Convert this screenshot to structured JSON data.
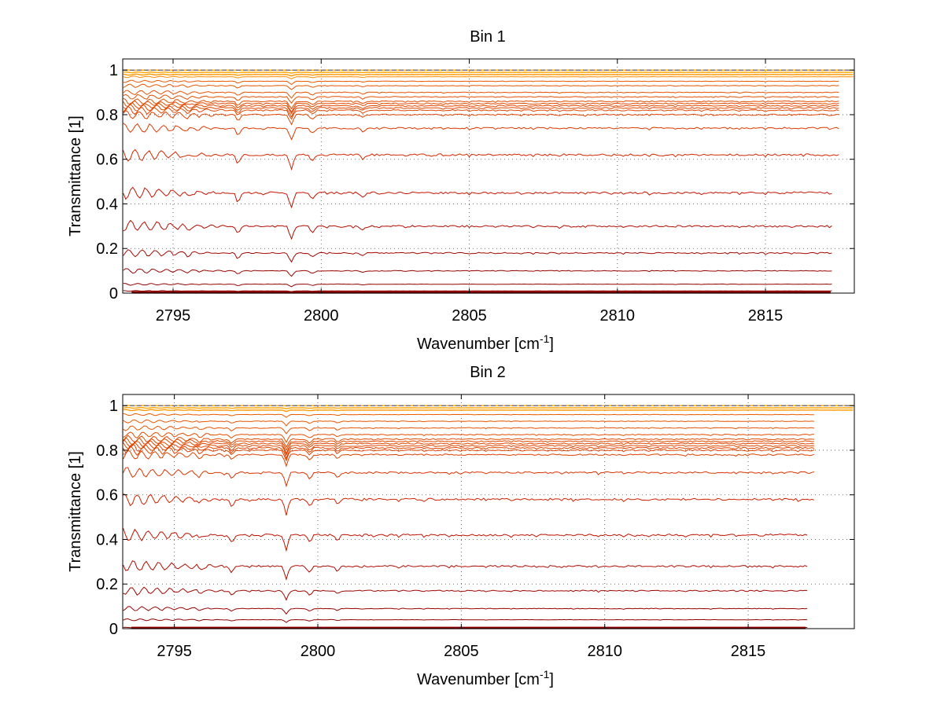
{
  "chart_data": [
    {
      "type": "line",
      "title": "Bin 1",
      "xlabel": "Wavenumber [cm",
      "xlabel_superscript": "-1",
      "xlabel_suffix": "]",
      "ylabel": "Transmittance [1]",
      "xlim": [
        2793.3,
        2818.0
      ],
      "ylim": [
        0,
        1.05
      ],
      "xticks": [
        2795,
        2800,
        2805,
        2810,
        2815
      ],
      "xtick_labels": [
        "2795",
        "2800",
        "2805",
        "2810",
        "2815"
      ],
      "yticks": [
        0,
        0.2,
        0.4,
        0.6,
        0.8,
        1
      ],
      "ytick_labels": [
        "0",
        "0.2",
        "0.4",
        "0.6",
        "0.8",
        "1"
      ],
      "grid": "dotted",
      "colors": {
        "dark": "#8b0000",
        "mid": "#cc1500",
        "light": "#ff8c00",
        "top": "#ffb000"
      },
      "absorption_lines": [
        {
          "x": 2797.2,
          "depth": 0.55
        },
        {
          "x": 2799.0,
          "depth": 1.0
        },
        {
          "x": 2799.7,
          "depth": 0.45
        },
        {
          "x": 2801.4,
          "depth": 0.3
        },
        {
          "x": 2795.5,
          "depth": 0.25
        }
      ],
      "series_levels": [
        1.0,
        0.99,
        0.98,
        0.97,
        0.95,
        0.93,
        0.9,
        0.88,
        0.86,
        0.85,
        0.84,
        0.83,
        0.82,
        0.8,
        0.74,
        0.62,
        0.45,
        0.3,
        0.18,
        0.1,
        0.04,
        0.01
      ],
      "series_x_end": 2817.5
    },
    {
      "type": "line",
      "title": "Bin 2",
      "xlabel": "Wavenumber [cm",
      "xlabel_superscript": "-1",
      "xlabel_suffix": "]",
      "ylabel": "Transmittance [1]",
      "xlim": [
        2793.2,
        2818.7
      ],
      "ylim": [
        0,
        1.05
      ],
      "xticks": [
        2795,
        2800,
        2805,
        2810,
        2815
      ],
      "xtick_labels": [
        "2795",
        "2800",
        "2805",
        "2810",
        "2815"
      ],
      "yticks": [
        0,
        0.2,
        0.4,
        0.6,
        0.8,
        1
      ],
      "ytick_labels": [
        "0",
        "0.2",
        "0.4",
        "0.6",
        "0.8",
        "1"
      ],
      "grid": "dotted",
      "colors": {
        "dark": "#8b0000",
        "mid": "#cc1500",
        "light": "#ff8c00",
        "top": "#ffb000"
      },
      "absorption_lines": [
        {
          "x": 2797.0,
          "depth": 0.5
        },
        {
          "x": 2798.9,
          "depth": 1.0
        },
        {
          "x": 2799.7,
          "depth": 0.45
        },
        {
          "x": 2800.7,
          "depth": 0.3
        },
        {
          "x": 2795.9,
          "depth": 0.25
        }
      ],
      "series_levels": [
        1.0,
        0.99,
        0.98,
        0.96,
        0.93,
        0.9,
        0.87,
        0.85,
        0.84,
        0.83,
        0.82,
        0.81,
        0.8,
        0.78,
        0.7,
        0.58,
        0.42,
        0.28,
        0.17,
        0.09,
        0.04,
        0.005
      ],
      "series_x_end": 2817.3
    }
  ]
}
